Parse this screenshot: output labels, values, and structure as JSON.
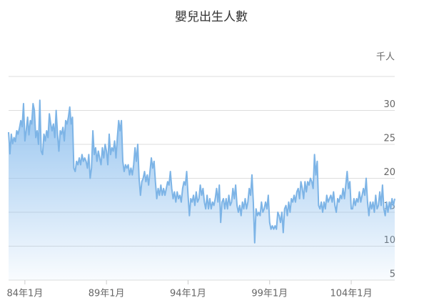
{
  "chart_data": {
    "type": "area",
    "title": "嬰兒出生人數",
    "y_label": "千人",
    "color": "#7db4e6",
    "categories": [
      null,
      null,
      null,
      null,
      null,
      null,
      null,
      null,
      null,
      null,
      null,
      null,
      "84年1月",
      null,
      null,
      null,
      null,
      null,
      null,
      null,
      null,
      null,
      null,
      null,
      null,
      null,
      null,
      null,
      null,
      null,
      null,
      null,
      null,
      null,
      null,
      null,
      null,
      null,
      null,
      null,
      null,
      null,
      null,
      null,
      null,
      null,
      null,
      null,
      null,
      null,
      null,
      null,
      null,
      null,
      null,
      null,
      null,
      null,
      null,
      null,
      null,
      null,
      null,
      null,
      null,
      null,
      null,
      null,
      null,
      null,
      null,
      null,
      "89年1月",
      null,
      null,
      null,
      null,
      null,
      null,
      null,
      null,
      null,
      null,
      null,
      null,
      null,
      null,
      null,
      null,
      null,
      null,
      null,
      null,
      null,
      null,
      null,
      null,
      null,
      null,
      null,
      null,
      null,
      null,
      null,
      null,
      null,
      null,
      null,
      null,
      null,
      null,
      null,
      null,
      null,
      null,
      null,
      null,
      null,
      null,
      null,
      null,
      null,
      null,
      null,
      null,
      null,
      null,
      null,
      null,
      null,
      null,
      null,
      "94年1月",
      null,
      null,
      null,
      null,
      null,
      null,
      null,
      null,
      null,
      null,
      null,
      null,
      null,
      null,
      null,
      null,
      null,
      null,
      null,
      null,
      null,
      null,
      null,
      null,
      null,
      null,
      null,
      null,
      null,
      null,
      null,
      null,
      null,
      null,
      null,
      null,
      null,
      null,
      null,
      null,
      null,
      null,
      null,
      null,
      null,
      null,
      null,
      null,
      null,
      null,
      null,
      null,
      null,
      null,
      null,
      null,
      null,
      null,
      null,
      "99年1月",
      null,
      null,
      null,
      null,
      null,
      null,
      null,
      null,
      null,
      null,
      null,
      null,
      null,
      null,
      null,
      null,
      null,
      null,
      null,
      null,
      null,
      null,
      null,
      null,
      null,
      null,
      null,
      null,
      null,
      null,
      null,
      null,
      null,
      null,
      null,
      null,
      null,
      null,
      null,
      null,
      null,
      null,
      null,
      null,
      null,
      null,
      null,
      null,
      null,
      null,
      null,
      null,
      null,
      null,
      null,
      null,
      null,
      null,
      null,
      "104年1月",
      null,
      null,
      null,
      null,
      null,
      null,
      null,
      null,
      null,
      null,
      null,
      null,
      null,
      null,
      null,
      null,
      null,
      null,
      null,
      null,
      null,
      null,
      null,
      null,
      null,
      null,
      null,
      null,
      null,
      null,
      null,
      null
    ],
    "values": [
      26.8,
      23.6,
      26.5,
      25.1,
      26.0,
      25.4,
      27.0,
      26.5,
      27.4,
      28.5,
      27.6,
      31.0,
      25.5,
      27.1,
      29.0,
      26.4,
      28.5,
      28.0,
      31.0,
      30.0,
      26.0,
      27.0,
      25.0,
      31.5,
      24.0,
      23.5,
      26.5,
      25.5,
      27.0,
      26.0,
      29.5,
      28.0,
      27.0,
      28.0,
      26.0,
      30.0,
      26.5,
      24.0,
      27.0,
      26.5,
      27.5,
      25.5,
      28.5,
      28.0,
      29.0,
      30.5,
      28.0,
      29.0,
      21.5,
      21.0,
      22.5,
      22.0,
      23.0,
      22.0,
      23.5,
      22.5,
      23.0,
      22.5,
      21.5,
      23.5,
      20.0,
      21.5,
      27.0,
      23.5,
      24.5,
      22.5,
      24.0,
      23.0,
      22.0,
      24.5,
      23.0,
      25.0,
      24.0,
      22.0,
      26.5,
      23.5,
      24.5,
      24.0,
      25.5,
      23.0,
      26.0,
      28.5,
      27.0,
      28.5,
      22.5,
      21.0,
      22.0,
      21.5,
      22.0,
      20.5,
      21.5,
      20.5,
      22.0,
      24.5,
      22.5,
      25.0,
      20.0,
      17.5,
      19.5,
      20.0,
      21.0,
      19.5,
      20.5,
      19.0,
      21.0,
      23.0,
      21.5,
      22.5,
      19.5,
      17.0,
      18.5,
      17.5,
      19.0,
      17.5,
      18.5,
      17.5,
      18.5,
      19.5,
      19.0,
      21.0,
      18.5,
      17.0,
      18.0,
      16.5,
      18.0,
      17.0,
      17.5,
      16.5,
      18.5,
      19.5,
      19.0,
      21.0,
      17.5,
      14.5,
      17.0,
      16.5,
      17.5,
      16.0,
      18.0,
      16.5,
      17.0,
      19.0,
      17.5,
      18.5,
      16.5,
      15.5,
      17.5,
      15.5,
      17.0,
      15.5,
      16.5,
      16.0,
      17.0,
      18.5,
      16.5,
      19.0,
      13.5,
      16.5,
      17.0,
      15.5,
      17.0,
      15.5,
      17.5,
      16.0,
      16.5,
      18.5,
      17.0,
      19.0,
      16.0,
      15.0,
      16.0,
      14.5,
      16.5,
      15.5,
      17.0,
      15.5,
      16.5,
      18.5,
      17.5,
      20.5,
      16.5,
      10.5,
      15.5,
      14.5,
      15.0,
      14.5,
      16.5,
      15.0,
      15.5,
      16.5,
      15.5,
      17.5,
      13.5,
      12.5,
      13.0,
      12.5,
      13.0,
      12.5,
      15.0,
      14.5,
      13.5,
      15.0,
      12.0,
      15.5,
      16.0,
      14.5,
      16.5,
      15.0,
      17.0,
      16.5,
      17.5,
      16.5,
      18.0,
      18.5,
      17.0,
      19.5,
      18.5,
      17.0,
      19.5,
      18.0,
      19.5,
      19.0,
      20.0,
      19.5,
      18.5,
      23.5,
      20.5,
      22.5,
      16.0,
      15.5,
      16.5,
      15.0,
      16.5,
      15.5,
      17.5,
      16.5,
      17.0,
      17.5,
      16.5,
      18.0,
      16.0,
      15.0,
      17.0,
      16.5,
      17.5,
      17.0,
      18.5,
      17.0,
      19.0,
      21.0,
      18.5,
      19.5,
      15.5,
      15.5,
      17.0,
      16.0,
      17.0,
      16.5,
      18.0,
      16.5,
      17.5,
      18.5,
      17.5,
      20.0,
      16.5,
      14.5,
      16.5,
      15.5,
      16.5,
      15.0,
      17.5,
      15.5,
      16.0,
      18.0,
      16.0,
      19.0,
      15.5,
      14.5,
      16.5,
      15.0,
      16.5,
      15.5,
      17.0,
      16.0,
      17.0
    ],
    "ylim": [
      5,
      35
    ],
    "yticks": [
      5,
      10,
      15,
      20,
      25,
      30
    ],
    "grid": true
  }
}
